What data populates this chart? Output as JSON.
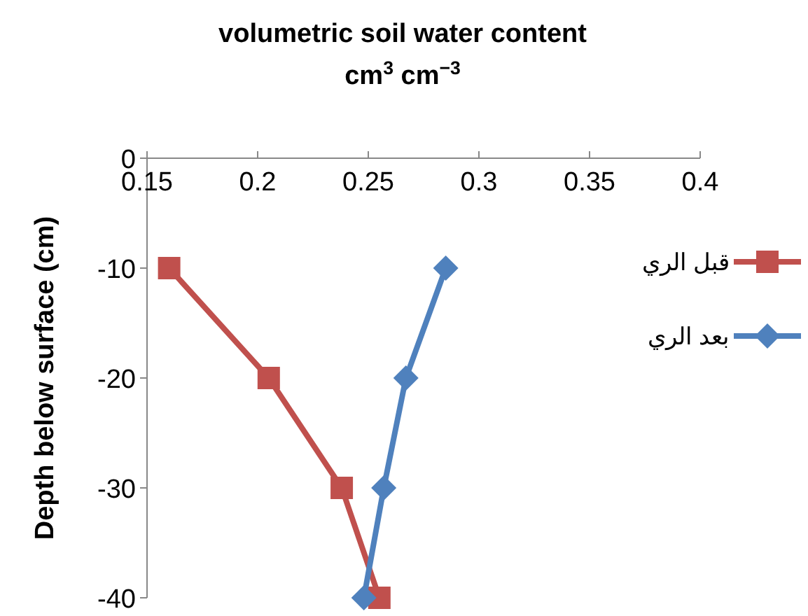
{
  "chart_data": {
    "type": "line",
    "title": "volumetric soil water content",
    "xlabel": "cm$^{3}$ cm$^{−3}$",
    "ylabel": "Depth below surface (cm)",
    "xlim": [
      0.15,
      0.4
    ],
    "xticks": [
      0.15,
      0.2,
      0.25,
      0.3,
      0.35,
      0.4
    ],
    "ylim": [
      -40,
      0
    ],
    "yticks": [
      0,
      -10,
      -20,
      -30,
      -40
    ],
    "grid": false,
    "legend": "right",
    "series": [
      {
        "name": "قبل الري",
        "color": "#c0504d",
        "marker": "square",
        "x": [
          0.16,
          0.205,
          0.238,
          0.255
        ],
        "values": [
          -10,
          -20,
          -30,
          -40
        ]
      },
      {
        "name": "بعد الري",
        "color": "#4f81bd",
        "marker": "diamond",
        "x": [
          0.285,
          0.267,
          0.257,
          0.248
        ],
        "values": [
          -10,
          -20,
          -30,
          -40
        ]
      }
    ]
  }
}
